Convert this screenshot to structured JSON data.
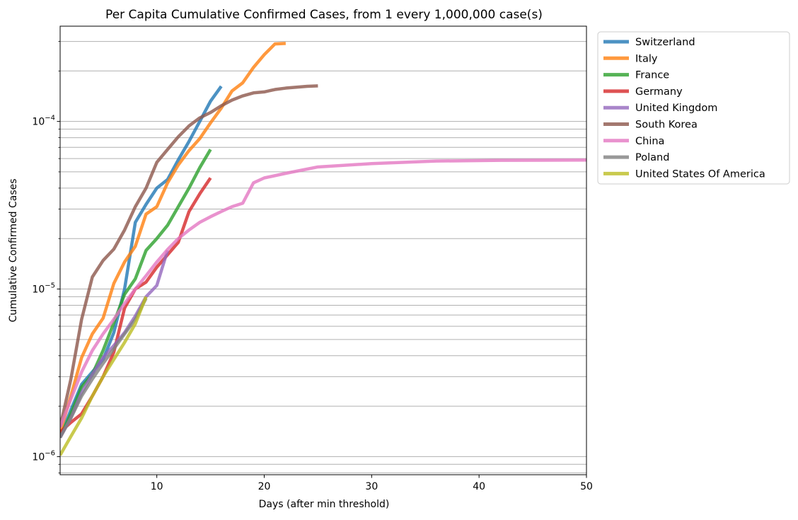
{
  "chart_data": {
    "type": "line",
    "title": "Per Capita Cumulative Confirmed Cases, from 1 every 1,000,000 case(s)",
    "xlabel": "Days (after min threshold)",
    "ylabel": "Cumulative Confirmed Cases",
    "xlim": [
      1,
      50
    ],
    "ylim": [
      7.8e-07,
      0.00037
    ],
    "yscale": "log",
    "grid": "y-major-and-minor",
    "legend_position": "outside-top-right",
    "x_ticks": [
      {
        "value": 10,
        "label": "10"
      },
      {
        "value": 20,
        "label": "20"
      },
      {
        "value": 30,
        "label": "30"
      },
      {
        "value": 40,
        "label": "40"
      },
      {
        "value": 50,
        "label": "50"
      }
    ],
    "y_major_ticks": [
      {
        "value": 1e-06,
        "base": "10",
        "exp": "−6"
      },
      {
        "value": 1e-05,
        "base": "10",
        "exp": "−5"
      },
      {
        "value": 0.0001,
        "base": "10",
        "exp": "−4"
      }
    ],
    "y_minor_ticks": [
      8e-07,
      9e-07,
      2e-06,
      3e-06,
      4e-06,
      5e-06,
      6e-06,
      7e-06,
      8e-06,
      9e-06,
      2e-05,
      3e-05,
      4e-05,
      5e-05,
      6e-05,
      7e-05,
      8e-05,
      9e-05,
      0.0002,
      0.0003
    ],
    "series": [
      {
        "name": "Switzerland",
        "color": "#1f77b4",
        "points": [
          [
            1,
            1.3e-06
          ],
          [
            2,
            1.9e-06
          ],
          [
            3,
            2.7e-06
          ],
          [
            4,
            3.2e-06
          ],
          [
            5,
            3.8e-06
          ],
          [
            6,
            5.5e-06
          ],
          [
            7,
            1e-05
          ],
          [
            8,
            2.5e-05
          ],
          [
            9,
            3.2e-05
          ],
          [
            10,
            4e-05
          ],
          [
            11,
            4.5e-05
          ],
          [
            12,
            5.9e-05
          ],
          [
            13,
            7.6e-05
          ],
          [
            14,
            0.0001
          ],
          [
            15,
            0.000132
          ],
          [
            16,
            0.000162
          ]
        ]
      },
      {
        "name": "Italy",
        "color": "#ff7f0e",
        "points": [
          [
            1,
            1.4e-06
          ],
          [
            2,
            2.3e-06
          ],
          [
            3,
            3.9e-06
          ],
          [
            4,
            5.4e-06
          ],
          [
            5,
            6.7e-06
          ],
          [
            6,
            1.08e-05
          ],
          [
            7,
            1.45e-05
          ],
          [
            8,
            1.8e-05
          ],
          [
            9,
            2.8e-05
          ],
          [
            10,
            3.1e-05
          ],
          [
            11,
            4.3e-05
          ],
          [
            12,
            5.5e-05
          ],
          [
            13,
            6.7e-05
          ],
          [
            14,
            7.9e-05
          ],
          [
            15,
            9.8e-05
          ],
          [
            16,
            0.00012
          ],
          [
            17,
            0.000152
          ],
          [
            18,
            0.00017
          ],
          [
            19,
            0.00021
          ],
          [
            20,
            0.00025
          ],
          [
            21,
            0.00029
          ],
          [
            22,
            0.000292
          ]
        ]
      },
      {
        "name": "France",
        "color": "#2ca02c",
        "points": [
          [
            1,
            1.3e-06
          ],
          [
            2,
            1.8e-06
          ],
          [
            3,
            2.6e-06
          ],
          [
            4,
            3.1e-06
          ],
          [
            5,
            4.3e-06
          ],
          [
            6,
            6.3e-06
          ],
          [
            7,
            9.3e-06
          ],
          [
            8,
            1.15e-05
          ],
          [
            9,
            1.7e-05
          ],
          [
            10,
            2e-05
          ],
          [
            11,
            2.4e-05
          ],
          [
            12,
            3.1e-05
          ],
          [
            13,
            4e-05
          ],
          [
            14,
            5.3e-05
          ],
          [
            15,
            6.8e-05
          ]
        ]
      },
      {
        "name": "Germany",
        "color": "#d62728",
        "points": [
          [
            1,
            1.4e-06
          ],
          [
            2,
            1.6e-06
          ],
          [
            3,
            1.8e-06
          ],
          [
            4,
            2.3e-06
          ],
          [
            5,
            3e-06
          ],
          [
            6,
            4.2e-06
          ],
          [
            7,
            7.7e-06
          ],
          [
            8,
            1e-05
          ],
          [
            9,
            1.1e-05
          ],
          [
            10,
            1.35e-05
          ],
          [
            11,
            1.6e-05
          ],
          [
            12,
            1.9e-05
          ],
          [
            13,
            2.9e-05
          ],
          [
            14,
            3.7e-05
          ],
          [
            15,
            4.6e-05
          ]
        ]
      },
      {
        "name": "United Kingdom",
        "color": "#9467bd",
        "points": [
          [
            1,
            1.3e-06
          ],
          [
            2,
            1.7e-06
          ],
          [
            3,
            2.4e-06
          ],
          [
            4,
            3.1e-06
          ],
          [
            5,
            3.9e-06
          ],
          [
            6,
            4.6e-06
          ],
          [
            7,
            5.5e-06
          ],
          [
            8,
            6.9e-06
          ],
          [
            9,
            9e-06
          ],
          [
            10,
            1.05e-05
          ],
          [
            11,
            1.7e-05
          ]
        ]
      },
      {
        "name": "South Korea",
        "color": "#8c564b",
        "points": [
          [
            1,
            1.5e-06
          ],
          [
            2,
            2.9e-06
          ],
          [
            3,
            6.6e-06
          ],
          [
            4,
            1.18e-05
          ],
          [
            5,
            1.48e-05
          ],
          [
            6,
            1.73e-05
          ],
          [
            7,
            2.25e-05
          ],
          [
            8,
            3.1e-05
          ],
          [
            9,
            4e-05
          ],
          [
            10,
            5.7e-05
          ],
          [
            11,
            6.8e-05
          ],
          [
            12,
            8.1e-05
          ],
          [
            13,
            9.4e-05
          ],
          [
            14,
            0.000105
          ],
          [
            15,
            0.000113
          ],
          [
            16,
            0.000124
          ],
          [
            17,
            0.000134
          ],
          [
            18,
            0.000142
          ],
          [
            19,
            0.000148
          ],
          [
            20,
            0.00015
          ],
          [
            21,
            0.000155
          ],
          [
            22,
            0.000158
          ],
          [
            23,
            0.00016
          ],
          [
            24,
            0.000162
          ],
          [
            25,
            0.000163
          ]
        ]
      },
      {
        "name": "China",
        "color": "#e377c2",
        "points": [
          [
            1,
            1.5e-06
          ],
          [
            2,
            2.2e-06
          ],
          [
            3,
            3.2e-06
          ],
          [
            4,
            4.3e-06
          ],
          [
            5,
            5.4e-06
          ],
          [
            6,
            6.6e-06
          ],
          [
            7,
            8.2e-06
          ],
          [
            8,
            1e-05
          ],
          [
            9,
            1.2e-05
          ],
          [
            10,
            1.45e-05
          ],
          [
            11,
            1.72e-05
          ],
          [
            12,
            2e-05
          ],
          [
            13,
            2.25e-05
          ],
          [
            14,
            2.5e-05
          ],
          [
            15,
            2.7e-05
          ],
          [
            16,
            2.9e-05
          ],
          [
            17,
            3.1e-05
          ],
          [
            18,
            3.25e-05
          ],
          [
            19,
            4.3e-05
          ],
          [
            20,
            4.6e-05
          ],
          [
            22,
            4.9e-05
          ],
          [
            25,
            5.35e-05
          ],
          [
            30,
            5.6e-05
          ],
          [
            36,
            5.8e-05
          ],
          [
            42,
            5.86e-05
          ],
          [
            50,
            5.88e-05
          ]
        ]
      },
      {
        "name": "Poland",
        "color": "#7f7f7f",
        "points": [
          [
            1,
            1.3e-06
          ],
          [
            2,
            1.7e-06
          ],
          [
            3,
            2.3e-06
          ],
          [
            4,
            2.9e-06
          ],
          [
            5,
            3.6e-06
          ],
          [
            6,
            4.4e-06
          ],
          [
            7,
            5.4e-06
          ],
          [
            8,
            6.6e-06
          ],
          [
            9,
            8.8e-06
          ]
        ]
      },
      {
        "name": "United States Of America",
        "color": "#bcbd22",
        "points": [
          [
            1,
            1.02e-06
          ],
          [
            2,
            1.32e-06
          ],
          [
            3,
            1.7e-06
          ],
          [
            4,
            2.3e-06
          ],
          [
            5,
            3e-06
          ],
          [
            6,
            3.8e-06
          ],
          [
            7,
            4.8e-06
          ],
          [
            8,
            6.2e-06
          ],
          [
            9,
            9e-06
          ]
        ]
      }
    ]
  }
}
